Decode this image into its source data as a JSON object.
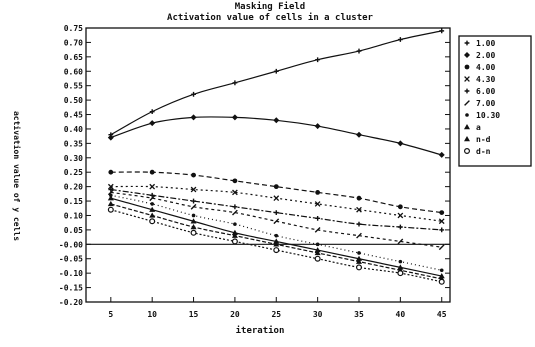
{
  "chart_data": {
    "type": "line",
    "title": "Masking Field",
    "subtitle": "Activation value of cells in a cluster",
    "xlabel": "iteration",
    "ylabel": "activation value of y cells",
    "x": [
      5,
      10,
      15,
      20,
      25,
      30,
      35,
      40,
      45
    ],
    "xlim": [
      2,
      46
    ],
    "ylim": [
      -0.2,
      0.75
    ],
    "yticks": [
      "0.75",
      "0.70",
      "0.65",
      "0.60",
      "0.55",
      "0.50",
      "0.45",
      "0.40",
      "0.35",
      "0.30",
      "0.25",
      "0.20",
      "0.15",
      "0.10",
      "0.05",
      "-0.00",
      "-0.05",
      "-0.10",
      "-0.15",
      "-0.20"
    ],
    "xticks": [
      "5",
      "10",
      "15",
      "20",
      "25",
      "30",
      "35",
      "40",
      "45"
    ],
    "zero_line": true,
    "legend_position": "right",
    "series": [
      {
        "name": "1.00",
        "marker": "+",
        "dash": "",
        "values": [
          0.38,
          0.46,
          0.52,
          0.56,
          0.6,
          0.64,
          0.67,
          0.71,
          0.74
        ]
      },
      {
        "name": "2.00",
        "marker": "diamond",
        "dash": "",
        "values": [
          0.37,
          0.42,
          0.44,
          0.44,
          0.43,
          0.41,
          0.38,
          0.35,
          0.31
        ]
      },
      {
        "name": "4.00",
        "marker": "circle",
        "dash": "5,3",
        "values": [
          0.25,
          0.25,
          0.24,
          0.22,
          0.2,
          0.18,
          0.16,
          0.13,
          0.11
        ]
      },
      {
        "name": "4.30",
        "marker": "x",
        "dash": "2,3",
        "values": [
          0.2,
          0.2,
          0.19,
          0.18,
          0.16,
          0.14,
          0.12,
          0.1,
          0.08
        ]
      },
      {
        "name": "6.00",
        "marker": "plus",
        "dash": "6,2,2,2",
        "values": [
          0.19,
          0.17,
          0.15,
          0.13,
          0.11,
          0.09,
          0.07,
          0.06,
          0.05
        ]
      },
      {
        "name": "7.00",
        "marker": "slash",
        "dash": "3,3",
        "values": [
          0.18,
          0.16,
          0.13,
          0.11,
          0.08,
          0.05,
          0.03,
          0.01,
          -0.01
        ]
      },
      {
        "name": "10.30",
        "marker": "dot",
        "dash": "1,3",
        "values": [
          0.17,
          0.14,
          0.1,
          0.07,
          0.03,
          0.0,
          -0.03,
          -0.06,
          -0.09
        ]
      },
      {
        "name": "a",
        "marker": "triangle",
        "dash": "",
        "values": [
          0.16,
          0.12,
          0.08,
          0.04,
          0.01,
          -0.02,
          -0.05,
          -0.08,
          -0.11
        ]
      },
      {
        "name": "n-d",
        "marker": "triangle",
        "dash": "4,2",
        "values": [
          0.14,
          0.1,
          0.06,
          0.03,
          0.0,
          -0.03,
          -0.06,
          -0.09,
          -0.12
        ]
      },
      {
        "name": "d-n",
        "marker": "circle-open",
        "dash": "2,2",
        "values": [
          0.12,
          0.08,
          0.04,
          0.01,
          -0.02,
          -0.05,
          -0.08,
          -0.1,
          -0.13
        ]
      }
    ]
  }
}
